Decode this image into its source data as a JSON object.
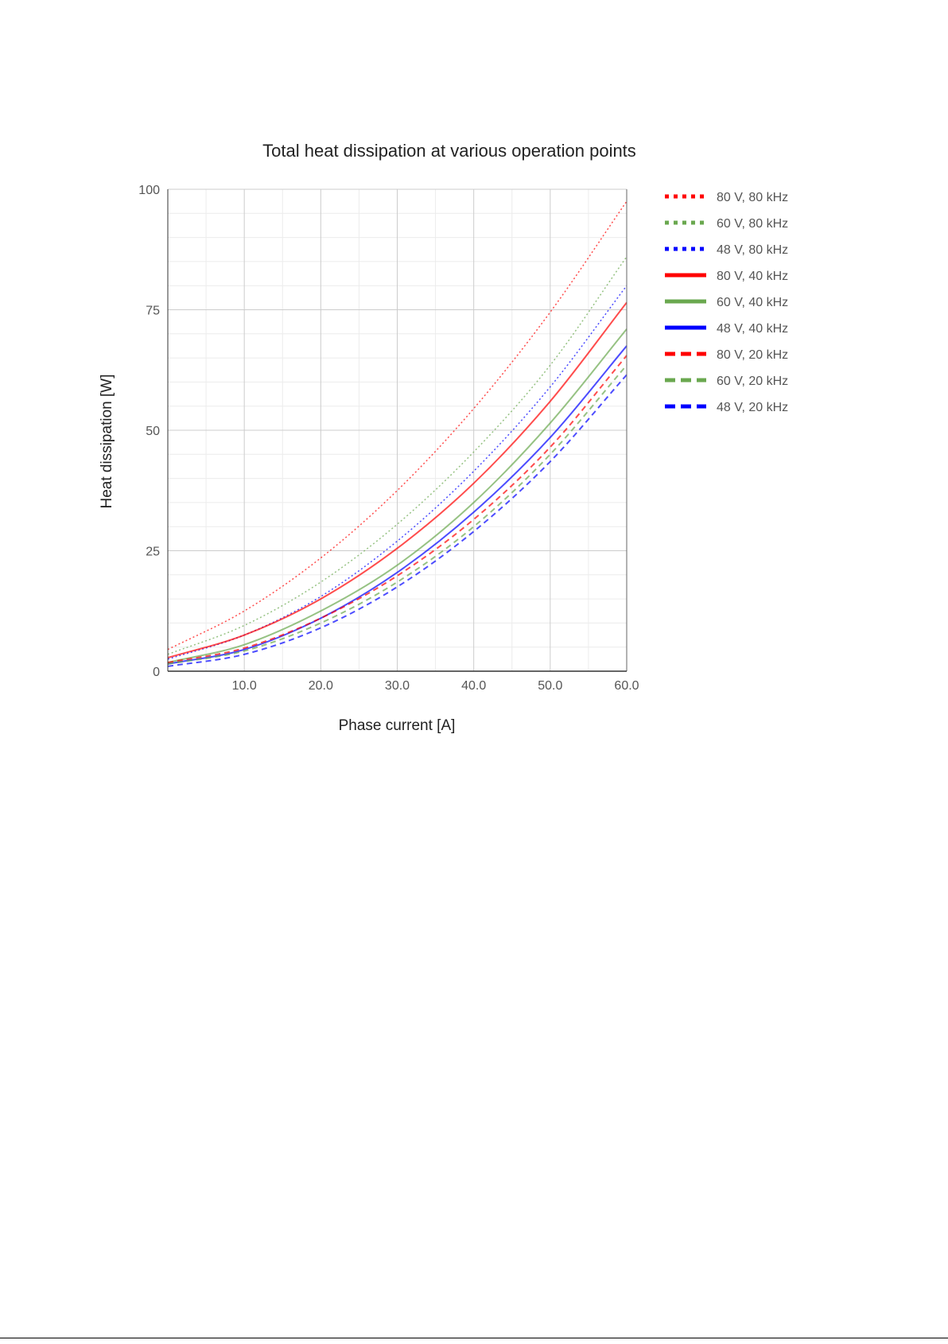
{
  "chart_data": {
    "type": "line",
    "title": "Total heat dissipation at various operation points",
    "xlabel": "Phase current [A]",
    "ylabel": "Heat dissipation [W]",
    "xlim": [
      0,
      60
    ],
    "ylim": [
      0,
      100
    ],
    "x_ticks": [
      10,
      20,
      30,
      40,
      50,
      60
    ],
    "x_tick_labels": [
      "10.0",
      "20.0",
      "30.0",
      "40.0",
      "50.0",
      "60.0"
    ],
    "y_ticks": [
      0,
      25,
      50,
      75,
      100
    ],
    "y_tick_labels": [
      "0",
      "25",
      "50",
      "75",
      "100"
    ],
    "grid": true,
    "legend_position": "right",
    "x": [
      0,
      10,
      20,
      30,
      40,
      50,
      60
    ],
    "series": [
      {
        "name": "80 V, 80 kHz",
        "color": "#ff0000",
        "style": "dotted",
        "values": [
          4.5,
          12.5,
          23.5,
          37.5,
          54.5,
          74.5,
          97.5
        ]
      },
      {
        "name": "60 V, 80 kHz",
        "color": "#6aa84f",
        "style": "dotted",
        "values": [
          3.5,
          9.5,
          18.5,
          30.5,
          45.5,
          63.5,
          86.0
        ]
      },
      {
        "name": "48 V, 80 kHz",
        "color": "#0000ff",
        "style": "dotted",
        "values": [
          2.5,
          7.5,
          15.5,
          27.0,
          41.5,
          59.0,
          80.0
        ]
      },
      {
        "name": "80 V, 40 kHz",
        "color": "#ff0000",
        "style": "solid",
        "values": [
          2.8,
          7.5,
          15.0,
          25.5,
          39.0,
          56.0,
          76.5
        ]
      },
      {
        "name": "60 V, 40 kHz",
        "color": "#6aa84f",
        "style": "solid",
        "values": [
          1.8,
          5.5,
          12.5,
          22.0,
          35.0,
          51.5,
          71.0
        ]
      },
      {
        "name": "48 V, 40 kHz",
        "color": "#0000ff",
        "style": "solid",
        "values": [
          1.5,
          4.5,
          11.0,
          20.5,
          33.0,
          48.5,
          67.5
        ]
      },
      {
        "name": "80 V, 20 kHz",
        "color": "#ff0000",
        "style": "dashed",
        "values": [
          1.8,
          4.8,
          11.0,
          19.8,
          31.5,
          46.5,
          65.5
        ]
      },
      {
        "name": "60 V, 20 kHz",
        "color": "#6aa84f",
        "style": "dashed",
        "values": [
          1.5,
          4.2,
          10.0,
          18.5,
          30.0,
          45.0,
          63.5
        ]
      },
      {
        "name": "48 V, 20 kHz",
        "color": "#0000ff",
        "style": "dashed",
        "values": [
          1.0,
          3.5,
          9.0,
          17.5,
          29.0,
          43.5,
          61.5
        ]
      }
    ]
  }
}
